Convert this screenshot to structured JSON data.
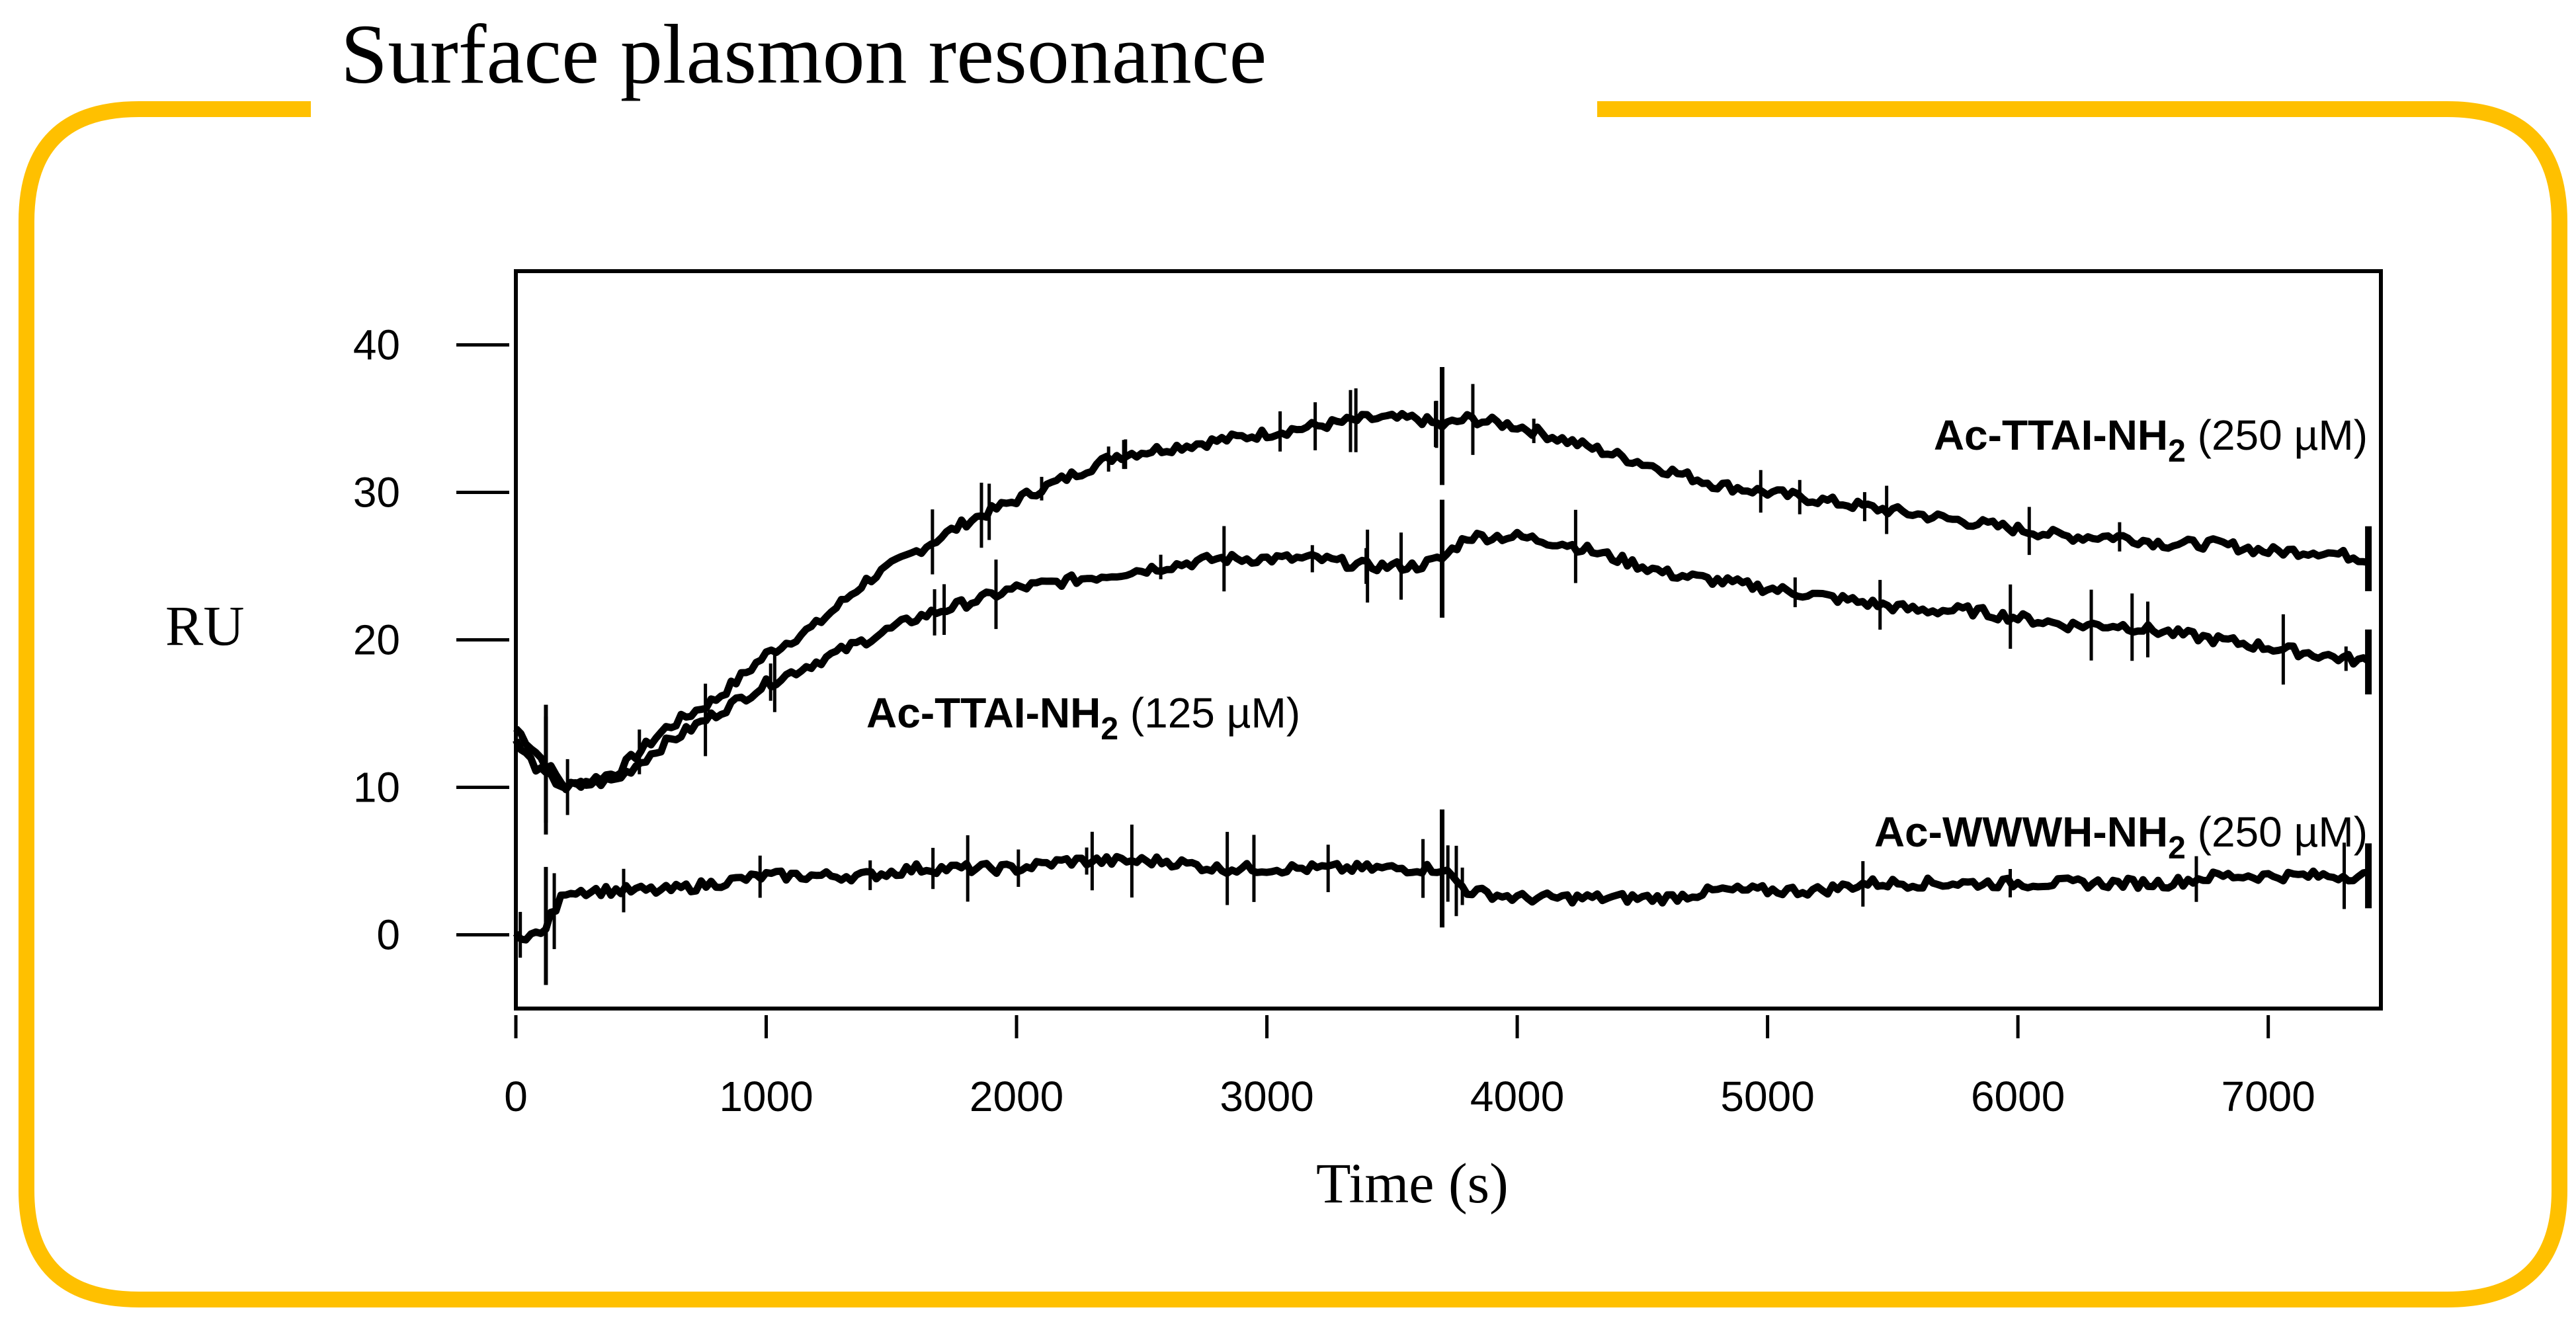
{
  "slide": {
    "title": "Surface plasmon resonance",
    "frame_color": "#FFC000"
  },
  "chart_data": {
    "type": "line",
    "title": "",
    "xlabel": "Time (s)",
    "ylabel": "RU",
    "xlim": [
      0,
      7450
    ],
    "ylim": [
      -5,
      45
    ],
    "x_ticks": [
      0,
      1000,
      2000,
      3000,
      4000,
      5000,
      6000,
      7000
    ],
    "y_ticks": [
      0,
      10,
      20,
      30,
      40
    ],
    "x_tick_labels": [
      "0",
      "1000",
      "2000",
      "3000",
      "4000",
      "5000",
      "6000",
      "7000"
    ],
    "y_tick_labels": [
      "0",
      "10",
      "20",
      "30",
      "40"
    ],
    "grid": false,
    "line_color": "#000000",
    "injection_end_time": 3700,
    "series": [
      {
        "name": "Ac-TTAI-NH2 (250 µM)",
        "label_parts": [
          "Ac-TTAI-NH",
          "2",
          " (250 µM)"
        ],
        "x": [
          0,
          100,
          200,
          400,
          600,
          800,
          1000,
          1200,
          1400,
          1600,
          1800,
          2000,
          2200,
          2400,
          2600,
          2800,
          3000,
          3200,
          3400,
          3600,
          3700,
          3800,
          4000,
          4200,
          4400,
          4600,
          4800,
          5000,
          5200,
          5400,
          5600,
          5800,
          6000,
          6200,
          6400,
          6600,
          6800,
          7000,
          7200,
          7400
        ],
        "y": [
          14,
          12,
          10,
          11,
          14,
          16,
          19,
          21,
          24,
          26,
          28,
          29.5,
          31,
          32.5,
          33,
          33.5,
          34,
          34.5,
          35,
          35,
          34.5,
          35,
          34.5,
          33.5,
          32.5,
          31.5,
          30.5,
          30,
          29.5,
          29,
          28.5,
          28,
          27.5,
          27,
          27,
          26.5,
          26.5,
          26,
          26,
          25.5
        ]
      },
      {
        "name": "Ac-TTAI-NH2 (125 µM)",
        "label_parts": [
          "Ac-TTAI-NH",
          "2",
          " (125 µM)"
        ],
        "x": [
          0,
          100,
          200,
          400,
          600,
          800,
          1000,
          1200,
          1400,
          1600,
          1800,
          2000,
          2200,
          2400,
          2600,
          2800,
          3000,
          3200,
          3400,
          3600,
          3700,
          3800,
          4000,
          4200,
          4400,
          4600,
          4800,
          5000,
          5200,
          5400,
          5600,
          5800,
          6000,
          6200,
          6400,
          6600,
          6800,
          7000,
          7200,
          7400
        ],
        "y": [
          13,
          11,
          10,
          10.5,
          13,
          15,
          17,
          18.5,
          20,
          21.5,
          22.5,
          23.5,
          24,
          24.5,
          25,
          25.5,
          25.5,
          25.5,
          25,
          25,
          25.5,
          27,
          27,
          26.5,
          25.5,
          24.5,
          24,
          23.5,
          23,
          22.5,
          22,
          22,
          21.5,
          21,
          21,
          20.5,
          20,
          19.5,
          19,
          18.5
        ]
      },
      {
        "name": "Ac-WWWH-NH2 (250 µM)",
        "label_parts": [
          "Ac-WWWH-NH",
          "2",
          " (250 µM)"
        ],
        "x": [
          0,
          100,
          200,
          400,
          600,
          800,
          1000,
          1200,
          1400,
          1600,
          1800,
          2000,
          2200,
          2400,
          2600,
          2800,
          3000,
          3200,
          3400,
          3600,
          3700,
          3800,
          4000,
          4200,
          4400,
          4600,
          4800,
          5000,
          5200,
          5400,
          5600,
          5800,
          6000,
          6200,
          6400,
          6600,
          6800,
          7000,
          7200,
          7400
        ],
        "y": [
          0,
          0,
          3,
          3,
          3,
          3.5,
          4,
          4,
          4,
          4.5,
          4.5,
          4.5,
          5,
          5,
          5,
          4.5,
          4.5,
          4.5,
          4.5,
          4.5,
          4.5,
          3,
          2.5,
          2.5,
          2.5,
          2.5,
          3,
          3,
          3,
          3.5,
          3.5,
          3.5,
          3.5,
          3.5,
          3.5,
          3.5,
          4,
          4,
          4,
          4
        ]
      }
    ]
  }
}
